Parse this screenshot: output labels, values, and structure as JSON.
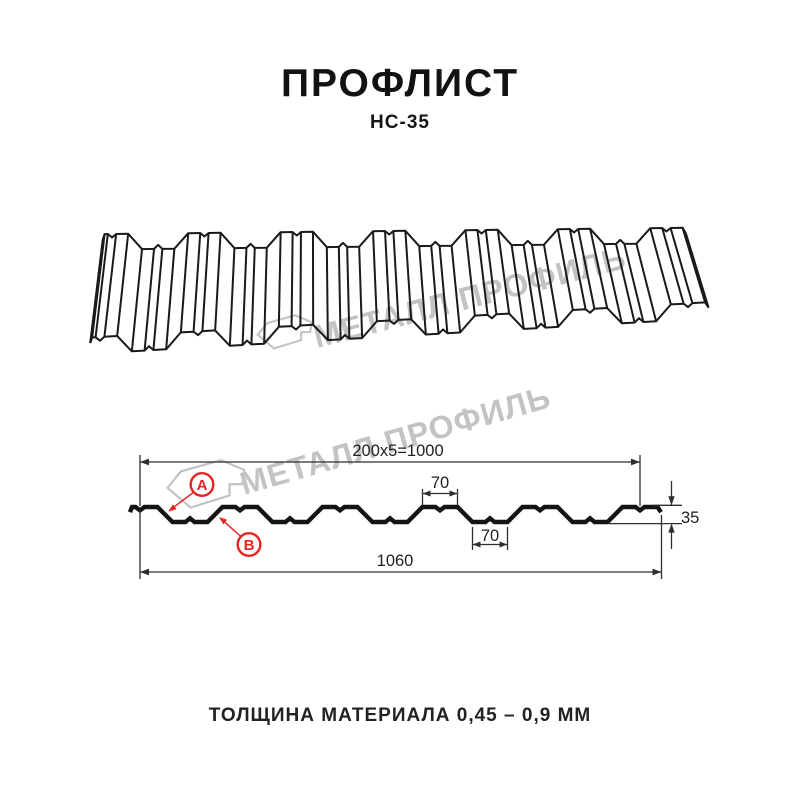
{
  "header": {
    "title": "ПРОФЛИСТ",
    "subtitle": "НС-35"
  },
  "footer": {
    "text": "ТОЛЩИНА МАТЕРИАЛА 0,45 – 0,9 ММ"
  },
  "watermark": {
    "text": "МЕТАЛЛ ПРОФИЛЬ",
    "color": "#c3c3c3"
  },
  "colors": {
    "drawing_line": "#1a1a1a",
    "dimension_line": "#2e2e2e",
    "accent_red": "#e32420",
    "background": "#ffffff"
  },
  "profile": {
    "name": "НС-35",
    "period_mm": 200,
    "periods_in_useful_width": 5,
    "top_flat_mm": 70,
    "valley_flat_mm": 70,
    "height_mm": 35,
    "total_width_mm": 1060,
    "useful_width_mm": 1000
  },
  "dimensions": {
    "top": "200x5=1000",
    "rib_top_width": "70",
    "rib_bottom_width": "70",
    "height": "35",
    "overall_width": "1060"
  },
  "labels": {
    "a": "А",
    "b": "В"
  }
}
